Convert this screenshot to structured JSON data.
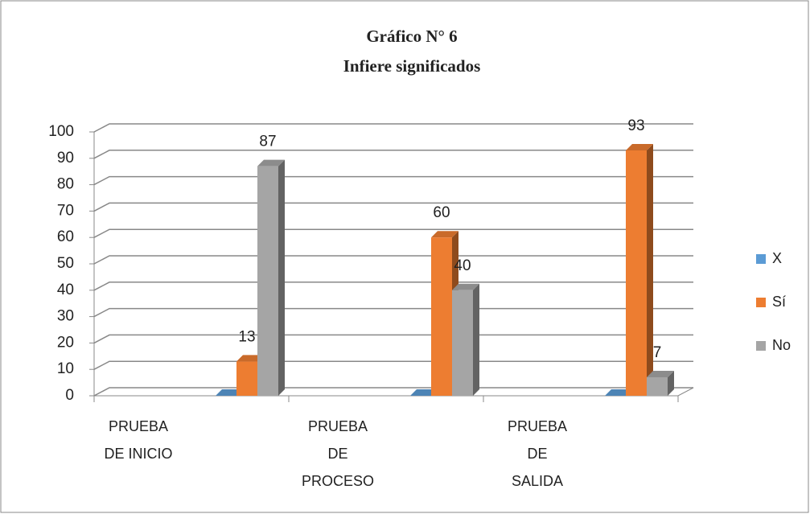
{
  "chart_data": {
    "type": "bar3d",
    "title": [
      "Gráfico N° 6",
      "Infiere significados"
    ],
    "categories": [
      [
        "PRUEBA",
        "DE INICIO"
      ],
      [
        "PRUEBA",
        "DE",
        "PROCESO"
      ],
      [
        "PRUEBA",
        "DE",
        "SALIDA"
      ]
    ],
    "series": [
      {
        "name": "X",
        "color": "#5b9bd5",
        "values": [
          0,
          0,
          0
        ],
        "data_labels": false
      },
      {
        "name": "Sí",
        "color": "#ed7d31",
        "values": [
          13,
          60,
          93
        ],
        "data_labels": true
      },
      {
        "name": "No",
        "color": "#a5a5a5",
        "values": [
          87,
          40,
          7
        ],
        "data_labels": true
      }
    ],
    "ylim": [
      0,
      100
    ],
    "yticks": [
      0,
      10,
      20,
      30,
      40,
      50,
      60,
      70,
      80,
      90,
      100
    ],
    "grid": true,
    "legend": "right"
  }
}
